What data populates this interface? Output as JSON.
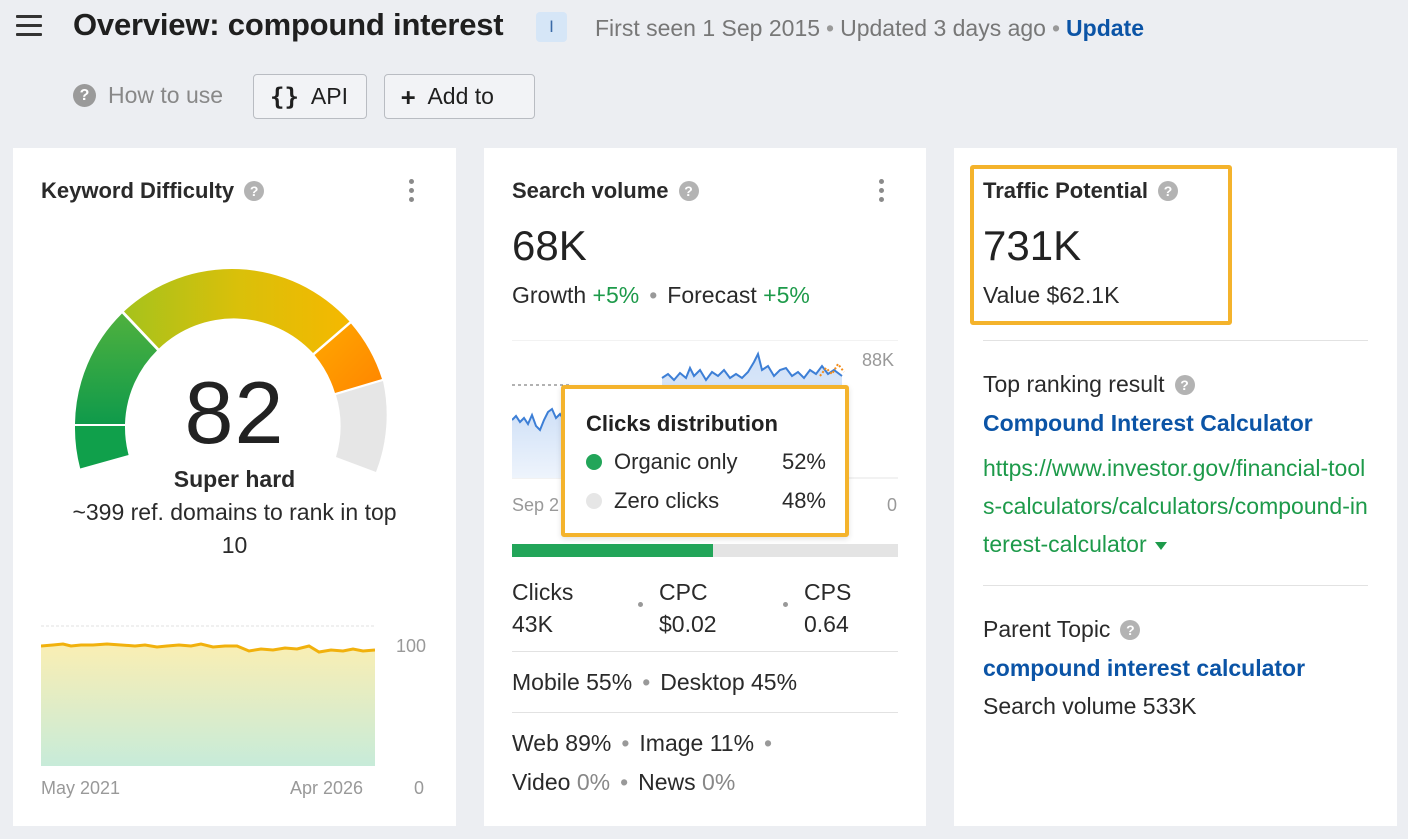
{
  "header": {
    "title": "Overview: compound interest",
    "intent_badge": "I",
    "first_seen": "First seen 1 Sep 2015",
    "updated": "Updated 3 days ago",
    "update_link": "Update"
  },
  "toolbar": {
    "how_to_use": "How to use",
    "api_label": "API",
    "api_icon": "{}",
    "add_to_label": "Add to",
    "add_icon": "+"
  },
  "keyword_difficulty": {
    "title": "Keyword Difficulty",
    "score": "82",
    "label": "Super hard",
    "description": "~399 ref. domains to rank in top 10",
    "chart": {
      "x_start": "May 2021",
      "x_end": "Apr 2026",
      "y_max": "100",
      "y_min": "0"
    }
  },
  "search_volume": {
    "title": "Search volume",
    "value": "68K",
    "growth_label": "Growth",
    "growth_value": "+5%",
    "forecast_label": "Forecast",
    "forecast_value": "+5%",
    "chart": {
      "y_max": "88K",
      "y_min": "0",
      "x_start": "Sep 2"
    },
    "clicks_distribution": {
      "title": "Clicks distribution",
      "organic_label": "Organic only",
      "organic_value": "52%",
      "organic_share": 0.52,
      "zero_label": "Zero clicks",
      "zero_value": "48%",
      "organic_color": "#22a559",
      "zero_color": "#e4e4e4"
    },
    "clicks_label": "Clicks",
    "clicks_value": "43K",
    "cpc_label": "CPC",
    "cpc_value": "$0.02",
    "cps_label": "CPS",
    "cps_value": "0.64",
    "mobile": "Mobile 55%",
    "desktop": "Desktop 45%",
    "web_label": "Web",
    "web_value": "89%",
    "image_label": "Image",
    "image_value": "11%",
    "video_label": "Video",
    "video_value": "0%",
    "news_label": "News",
    "news_value": "0%"
  },
  "traffic_potential": {
    "title": "Traffic Potential",
    "value": "731K",
    "value_label": "Value $62.1K",
    "top_result_label": "Top ranking result",
    "top_result_title": "Compound Interest Calculator",
    "top_result_url": "https://www.investor.gov/financial-tools-calculators/calculators/compound-interest-calculator",
    "parent_topic_label": "Parent Topic",
    "parent_topic": "compound interest calculator",
    "parent_volume": "Search volume 533K"
  },
  "colors": {
    "accent_link": "#0b54a6",
    "positive_green": "#1d9a4a",
    "highlight_outline": "#f4b32c"
  }
}
